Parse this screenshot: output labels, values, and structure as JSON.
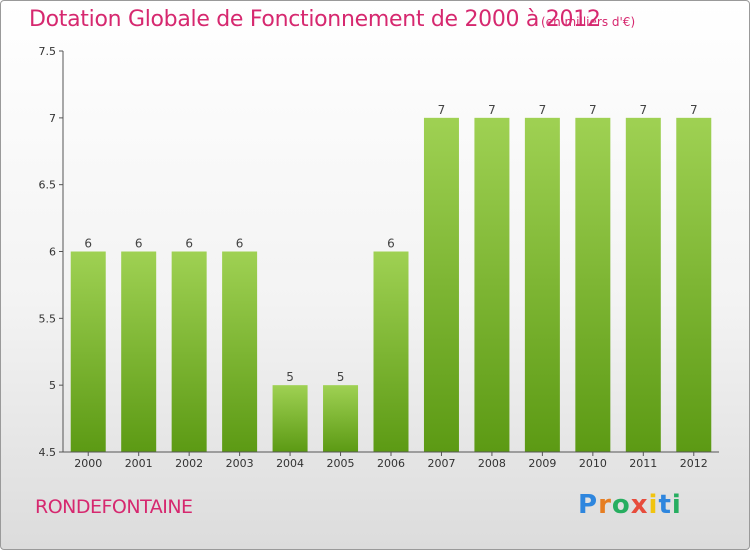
{
  "header": {
    "title": "Dotation Globale de Fonctionnement de 2000 à 2012",
    "unit": "(en milliers d'€)"
  },
  "footer": {
    "commune": "RONDEFONTAINE",
    "logo": "Proxiti"
  },
  "colors": {
    "title": "#d6286f",
    "bar_top": "#9fd153",
    "bar_bottom": "#5c9a14",
    "axis": "#555555"
  },
  "chart_data": {
    "type": "bar",
    "title": "Dotation Globale de Fonctionnement de 2000 à 2012",
    "categories": [
      "2000",
      "2001",
      "2002",
      "2003",
      "2004",
      "2005",
      "2006",
      "2007",
      "2008",
      "2009",
      "2010",
      "2011",
      "2012"
    ],
    "values": [
      6,
      6,
      6,
      6,
      5,
      5,
      6,
      7,
      7,
      7,
      7,
      7,
      7
    ],
    "data_labels": [
      "6",
      "6",
      "6",
      "6",
      "5",
      "5",
      "6",
      "7",
      "7",
      "7",
      "7",
      "7",
      "7"
    ],
    "xlabel": "",
    "ylabel": "",
    "ylim": [
      4.5,
      7.5
    ],
    "yticks": [
      4.5,
      5,
      5.5,
      6,
      6.5,
      7,
      7.5
    ],
    "ytick_labels": [
      "4.5",
      "5",
      "5.5",
      "6",
      "6.5",
      "7",
      "7.5"
    ],
    "grid": false,
    "legend": "none"
  }
}
